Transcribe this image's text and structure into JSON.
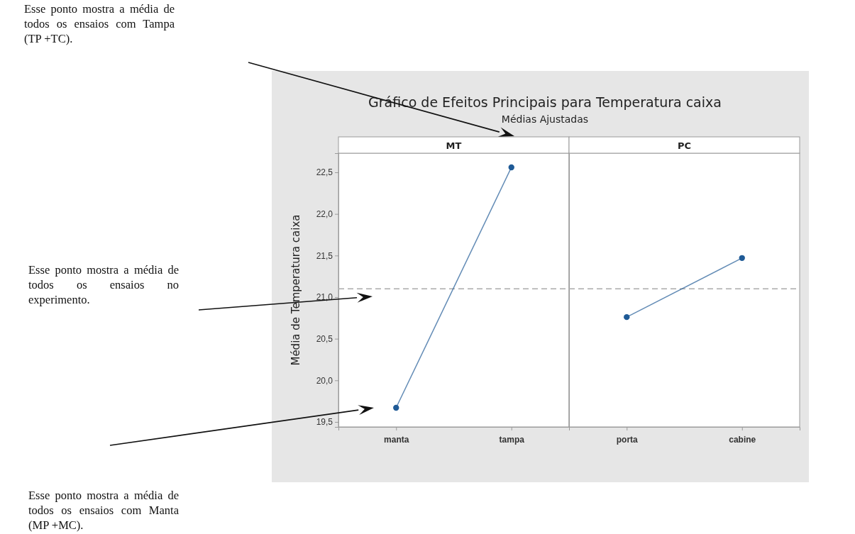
{
  "chart_data": [
    {
      "type": "line",
      "title": "Gráfico de Efeitos Principais para Temperatura caixa",
      "subtitle": "Médias Ajustadas",
      "xlabel": "MT",
      "ylabel": "Média de Temperatura caixa",
      "categories": [
        "manta",
        "tampa"
      ],
      "series": [
        {
          "color": "#1f5a96",
          "values": [
            19.67,
            22.56
          ]
        }
      ],
      "marker": "circle",
      "ylim": [
        19.44,
        22.73
      ],
      "yticks": [
        {
          "value": 19.5,
          "label": "19,5"
        },
        {
          "value": 20,
          "label": "20,0"
        },
        {
          "value": 20.5,
          "label": "20,5"
        },
        {
          "value": 21,
          "label": "21,0"
        },
        {
          "value": 21.5,
          "label": "21,5"
        },
        {
          "value": 22,
          "label": "22,0"
        },
        {
          "value": 22.5,
          "label": "22,5"
        }
      ],
      "ref_lines": [
        {
          "axis": "y",
          "value": 21.1,
          "color": "#aaaaaa",
          "line_style": "dashed"
        }
      ],
      "annotations": [
        "Esse ponto mostra a média de todos os ensaios com Tampa (TP +TC).",
        "Esse ponto mostra a média de todos os ensaios no experimento.",
        "Esse ponto mostra a média de todos os ensaios com Manta (MP +MC)."
      ]
    },
    {
      "type": "line",
      "xlabel": "PC",
      "categories": [
        "porta",
        "cabine"
      ],
      "series": [
        {
          "color": "#1f5a96",
          "values": [
            20.76,
            21.47
          ]
        }
      ],
      "marker": "circle",
      "ylim": [
        19.44,
        22.73
      ],
      "tick_labels": "x",
      "ref_lines": [
        {
          "axis": "y",
          "value": 21.1,
          "color": "#aaaaaa",
          "line_style": "dashed"
        }
      ]
    }
  ]
}
